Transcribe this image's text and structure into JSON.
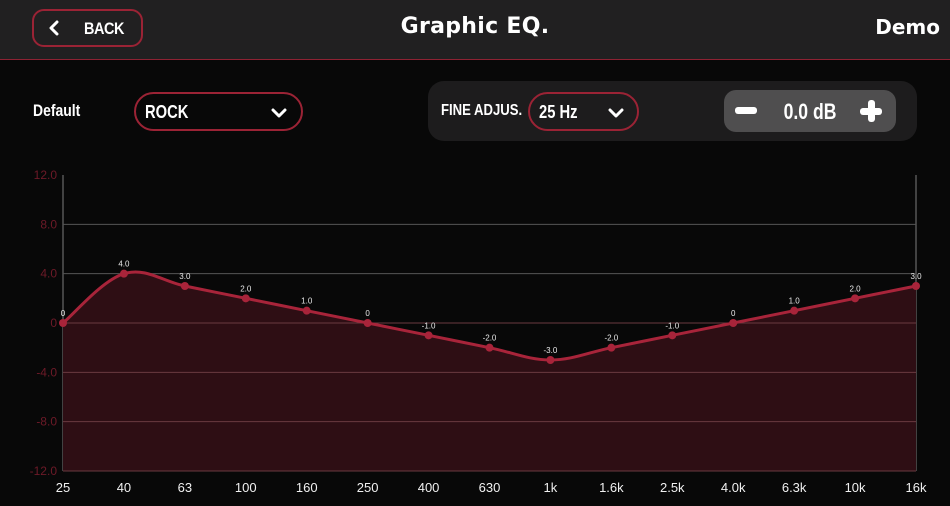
{
  "header": {
    "back_label": "BACK",
    "title": "Graphic EQ.",
    "mode": "Demo"
  },
  "preset": {
    "label": "Default",
    "selected": "ROCK"
  },
  "fine_adjust": {
    "label": "FINE ADJUS.",
    "frequency": "25 Hz",
    "gain": "0.0 dB"
  },
  "icons": {
    "back": "chevron-left-icon",
    "dropdown": "chevron-down-icon",
    "minus": "minus-icon",
    "plus": "plus-icon"
  },
  "colors": {
    "accent": "#9b2335",
    "curve": "#a8243a",
    "fill": "#2e0e14",
    "header_bg": "#212021",
    "background": "#080808",
    "stepper_bg": "#4f4e4f"
  },
  "chart_data": {
    "type": "area",
    "title": "",
    "xlabel": "",
    "ylabel": "",
    "categories": [
      "25",
      "40",
      "63",
      "100",
      "160",
      "250",
      "400",
      "630",
      "1k",
      "1.6k",
      "2.5k",
      "4.0k",
      "6.3k",
      "10k",
      "16k"
    ],
    "values": [
      0,
      4.0,
      3.0,
      2.0,
      1.0,
      0,
      -1.0,
      -2.0,
      -3.0,
      -2.0,
      -1.0,
      0,
      1.0,
      2.0,
      3.0
    ],
    "point_labels": [
      "0",
      "4.0",
      "3.0",
      "2.0",
      "1.0",
      "0",
      "-1.0",
      "-2.0",
      "-3.0",
      "-2.0",
      "-1.0",
      "0",
      "1.0",
      "2.0",
      "3.0"
    ],
    "y_ticks": [
      "12.0",
      "8.0",
      "4.0",
      "0",
      "-4.0",
      "-8.0",
      "-12.0"
    ],
    "y_tick_values": [
      12,
      8,
      4,
      0,
      -4,
      -8,
      -12
    ],
    "ylim": [
      -12,
      12
    ],
    "grid": true,
    "smooth": true
  }
}
